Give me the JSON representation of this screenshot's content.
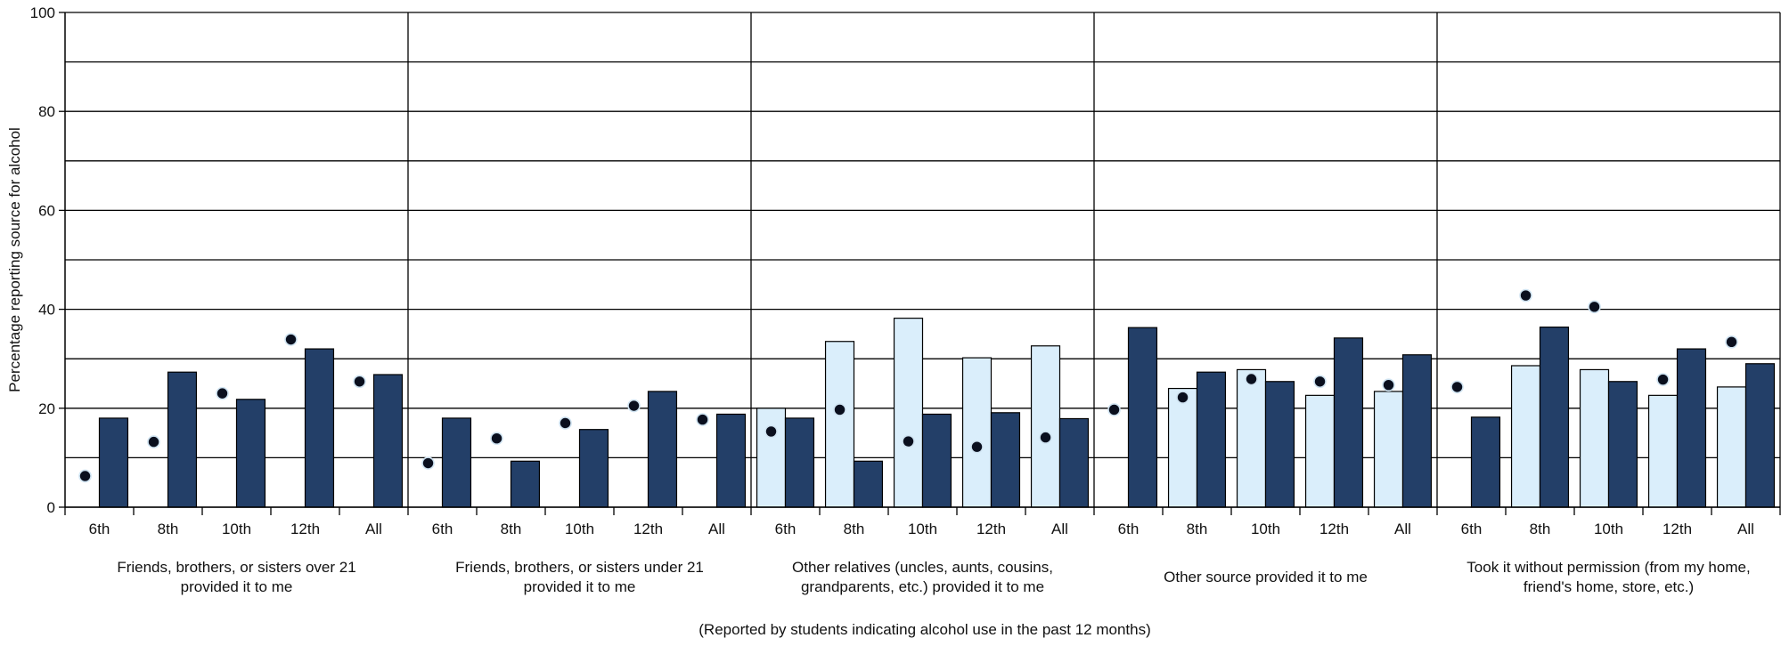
{
  "chart_data": {
    "type": "bar",
    "title": "",
    "ylabel": "Percentage reporting source for alcohol",
    "xlabel": "(Reported by students indicating alcohol use in the past 12 months)",
    "ylim": [
      0,
      100
    ],
    "yticks": [
      0,
      20,
      40,
      60,
      80,
      100
    ],
    "grid": true,
    "legend": "none",
    "colors": {
      "light": "#daeefb",
      "dark": "#233f68",
      "dot": "#0a0f1e",
      "dot_edge": "#cfe3f1",
      "axis": "#000000"
    },
    "groups": [
      {
        "label_lines": [
          "Friends, brothers, or sisters over 21",
          "provided it to me"
        ],
        "categories": [
          "6th",
          "8th",
          "10th",
          "12th",
          "All"
        ],
        "light": [
          null,
          null,
          null,
          null,
          null
        ],
        "dark": [
          18,
          27.3,
          21.8,
          32,
          26.8
        ],
        "dots": [
          6.3,
          13.2,
          23,
          33.9,
          25.4
        ]
      },
      {
        "label_lines": [
          "Friends, brothers, or sisters under 21",
          "provided it to me"
        ],
        "categories": [
          "6th",
          "8th",
          "10th",
          "12th",
          "All"
        ],
        "light": [
          null,
          null,
          null,
          null,
          null
        ],
        "dark": [
          18,
          9.3,
          15.7,
          23.4,
          18.8
        ],
        "dots": [
          8.9,
          13.9,
          17,
          20.5,
          17.7
        ]
      },
      {
        "label_lines": [
          "Other relatives (uncles, aunts, cousins,",
          "grandparents, etc.) provided it to me"
        ],
        "categories": [
          "6th",
          "8th",
          "10th",
          "12th",
          "All"
        ],
        "light": [
          20,
          33.5,
          38.2,
          30.2,
          32.6
        ],
        "dark": [
          18,
          9.3,
          18.8,
          19.1,
          17.9
        ],
        "dots": [
          15.3,
          19.7,
          13.3,
          12.2,
          14.1
        ]
      },
      {
        "label_lines": [
          "Other source provided it to me"
        ],
        "categories": [
          "6th",
          "8th",
          "10th",
          "12th",
          "All"
        ],
        "light": [
          null,
          24,
          27.8,
          22.6,
          23.4
        ],
        "dark": [
          36.3,
          27.3,
          25.4,
          34.2,
          30.8
        ],
        "dots": [
          19.7,
          22.2,
          25.9,
          25.4,
          24.7
        ]
      },
      {
        "label_lines": [
          "Took it without permission (from my home,",
          "friend's home, store, etc.)"
        ],
        "categories": [
          "6th",
          "8th",
          "10th",
          "12th",
          "All"
        ],
        "light": [
          null,
          28.6,
          27.8,
          22.6,
          24.3
        ],
        "dark": [
          18.2,
          36.4,
          25.4,
          32,
          29
        ],
        "dots": [
          24.3,
          42.8,
          40.5,
          25.8,
          33.4
        ]
      }
    ]
  }
}
